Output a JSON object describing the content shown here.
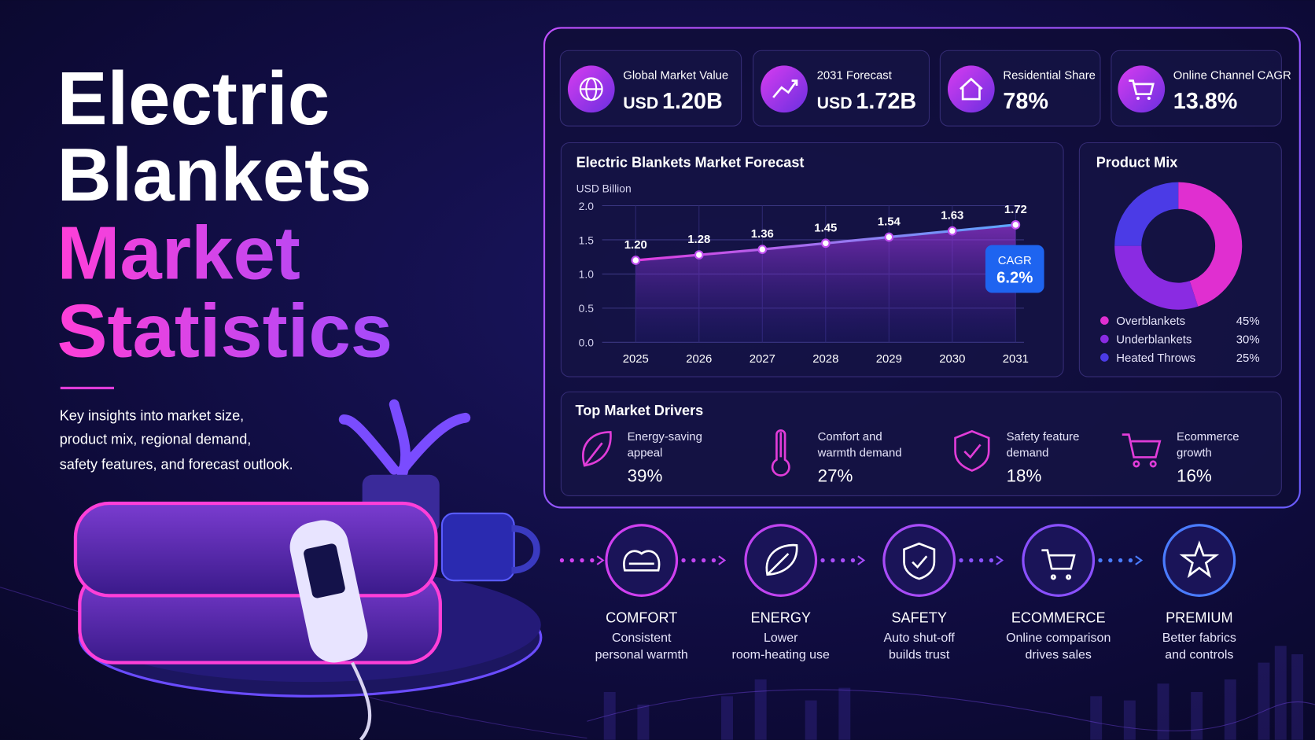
{
  "hero": {
    "title_lines": [
      "Electric",
      "Blankets",
      "Market",
      "Statistics"
    ],
    "description_lines": [
      "Key insights into market size,",
      "product mix, regional demand,",
      "safety features, and forecast outlook."
    ]
  },
  "kpis": [
    {
      "label": "Global Market Value",
      "prefix": "USD",
      "value": "1.20B"
    },
    {
      "label": "2031 Forecast",
      "prefix": "USD",
      "value": "1.72B"
    },
    {
      "label": "Residential Share",
      "value": "78%"
    },
    {
      "label": "Online Channel CAGR",
      "value": "13.8%"
    }
  ],
  "chart_data": [
    {
      "type": "line",
      "title": "Electric Blankets Market Forecast",
      "y_label": "USD Billion",
      "categories": [
        "2025",
        "2026",
        "2027",
        "2028",
        "2029",
        "2030",
        "2031"
      ],
      "values": [
        1.2,
        1.28,
        1.36,
        1.45,
        1.54,
        1.63,
        1.72
      ],
      "value_labels": [
        "1.20",
        "1.28",
        "1.36",
        "1.45",
        "1.54",
        "1.63",
        "1.72"
      ],
      "ylim": [
        0,
        2
      ],
      "yticks": [
        {
          "value": 0,
          "label": "0.0"
        },
        0.5,
        {
          "value": 1,
          "label": "1.0"
        },
        1.5,
        {
          "value": 2,
          "label": "2.0"
        }
      ],
      "color": "#c04ef0",
      "grid": true,
      "annotation": {
        "label": "CAGR",
        "value": "6.2%"
      }
    },
    {
      "type": "pie",
      "title": "Product Mix",
      "categories": [
        "Overblankets",
        "Underblankets",
        "Heated Throws"
      ],
      "values": [
        45,
        30,
        25
      ],
      "value_labels": [
        "45%",
        "30%",
        "25%"
      ],
      "colors": [
        "#e02fd0",
        "#8a2be2",
        "#4b3be6"
      ]
    }
  ],
  "drivers": {
    "title": "Top Market Drivers",
    "items": [
      {
        "label_lines": [
          "Energy-saving",
          "appeal"
        ],
        "value": "39%"
      },
      {
        "label_lines": [
          "Comfort and",
          "warmth demand"
        ],
        "value": "27%"
      },
      {
        "label_lines": [
          "Safety feature",
          "demand"
        ],
        "value": "18%"
      },
      {
        "label_lines": [
          "Ecommerce",
          "growth"
        ],
        "value": "16%"
      }
    ]
  },
  "steps": [
    {
      "title": "COMFORT",
      "lines": [
        "Consistent",
        "personal warmth"
      ]
    },
    {
      "title": "ENERGY",
      "lines": [
        "Lower",
        "room-heating use"
      ]
    },
    {
      "title": "SAFETY",
      "lines": [
        "Auto shut-off",
        "builds trust"
      ]
    },
    {
      "title": "ECOMMERCE",
      "lines": [
        "Online comparison",
        "drives sales"
      ]
    },
    {
      "title": "PREMIUM",
      "lines": [
        "Better fabrics",
        "and controls"
      ]
    }
  ]
}
